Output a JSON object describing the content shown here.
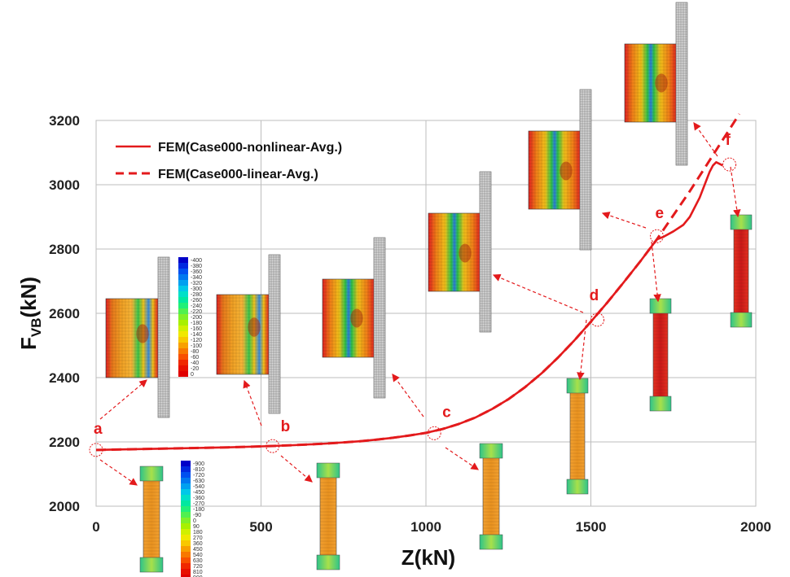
{
  "chart_data": {
    "type": "line",
    "xlabel": "Z(kN)",
    "ylabel_main": "F",
    "ylabel_sub": "VB",
    "ylabel_tail": "(kN)",
    "xlim": [
      0,
      2000
    ],
    "ylim": [
      2000,
      3200
    ],
    "xticks": [
      "0",
      "500",
      "1000",
      "1500",
      "2000"
    ],
    "yticks": [
      "2000",
      "2200",
      "2400",
      "2600",
      "2800",
      "3000",
      "3200"
    ],
    "grid": true,
    "legend_position": "top-left",
    "series": [
      {
        "name": "FEM(Case000-nonlinear-Avg.)",
        "style": "solid",
        "color": "#e31a1c",
        "x": [
          0,
          100,
          200,
          300,
          400,
          500,
          600,
          700,
          800,
          850,
          900,
          950,
          1000,
          1050,
          1100,
          1150,
          1200,
          1250,
          1300,
          1350,
          1400,
          1450,
          1500,
          1550,
          1600,
          1650,
          1700,
          1720,
          1750,
          1780,
          1800,
          1830,
          1860,
          1870,
          1880,
          1890,
          1900
        ],
        "y": [
          2175,
          2177,
          2179,
          2181,
          2183,
          2186,
          2190,
          2195,
          2202,
          2207,
          2213,
          2220,
          2228,
          2240,
          2256,
          2276,
          2302,
          2333,
          2370,
          2413,
          2462,
          2516,
          2574,
          2634,
          2697,
          2762,
          2830,
          2838,
          2855,
          2875,
          2900,
          2960,
          3040,
          3060,
          3070,
          3065,
          3060
        ]
      },
      {
        "name": "FEM(Case000-linear-Avg.)",
        "style": "dashed",
        "color": "#e31a1c",
        "x": [
          0,
          100,
          200,
          300,
          400,
          500,
          600,
          700,
          800,
          850,
          900,
          950,
          1000,
          1050,
          1100,
          1150,
          1200,
          1250,
          1300,
          1350,
          1400,
          1450,
          1500,
          1550,
          1600,
          1650,
          1700,
          1750,
          1800,
          1850,
          1900,
          1950
        ],
        "y": [
          2175,
          2177,
          2179,
          2181,
          2183,
          2186,
          2190,
          2195,
          2202,
          2207,
          2213,
          2220,
          2228,
          2240,
          2256,
          2276,
          2302,
          2333,
          2370,
          2413,
          2462,
          2516,
          2574,
          2634,
          2697,
          2762,
          2830,
          2905,
          2980,
          3060,
          3140,
          3220
        ]
      }
    ],
    "annotations": [
      {
        "label": "a",
        "x": 0,
        "y": 2175
      },
      {
        "label": "b",
        "x": 535,
        "y": 2187
      },
      {
        "label": "c",
        "x": 1025,
        "y": 2227
      },
      {
        "label": "d",
        "x": 1520,
        "y": 2580
      },
      {
        "label": "e",
        "x": 1700,
        "y": 2840
      },
      {
        "label": "f",
        "x": 1920,
        "y": 3063
      }
    ],
    "contour_scale_1": [
      "-400",
      "-380",
      "-360",
      "-340",
      "-320",
      "-300",
      "-280",
      "-260",
      "-240",
      "-220",
      "-200",
      "-180",
      "-160",
      "-140",
      "-120",
      "-100",
      "-80",
      "-60",
      "-40",
      "-20",
      "0"
    ],
    "contour_scale_2": [
      "-900",
      "-810",
      "-720",
      "-630",
      "-540",
      "-450",
      "-360",
      "-270",
      "-180",
      "-90",
      "0",
      "90",
      "180",
      "270",
      "360",
      "450",
      "540",
      "630",
      "720",
      "810",
      "900"
    ]
  }
}
